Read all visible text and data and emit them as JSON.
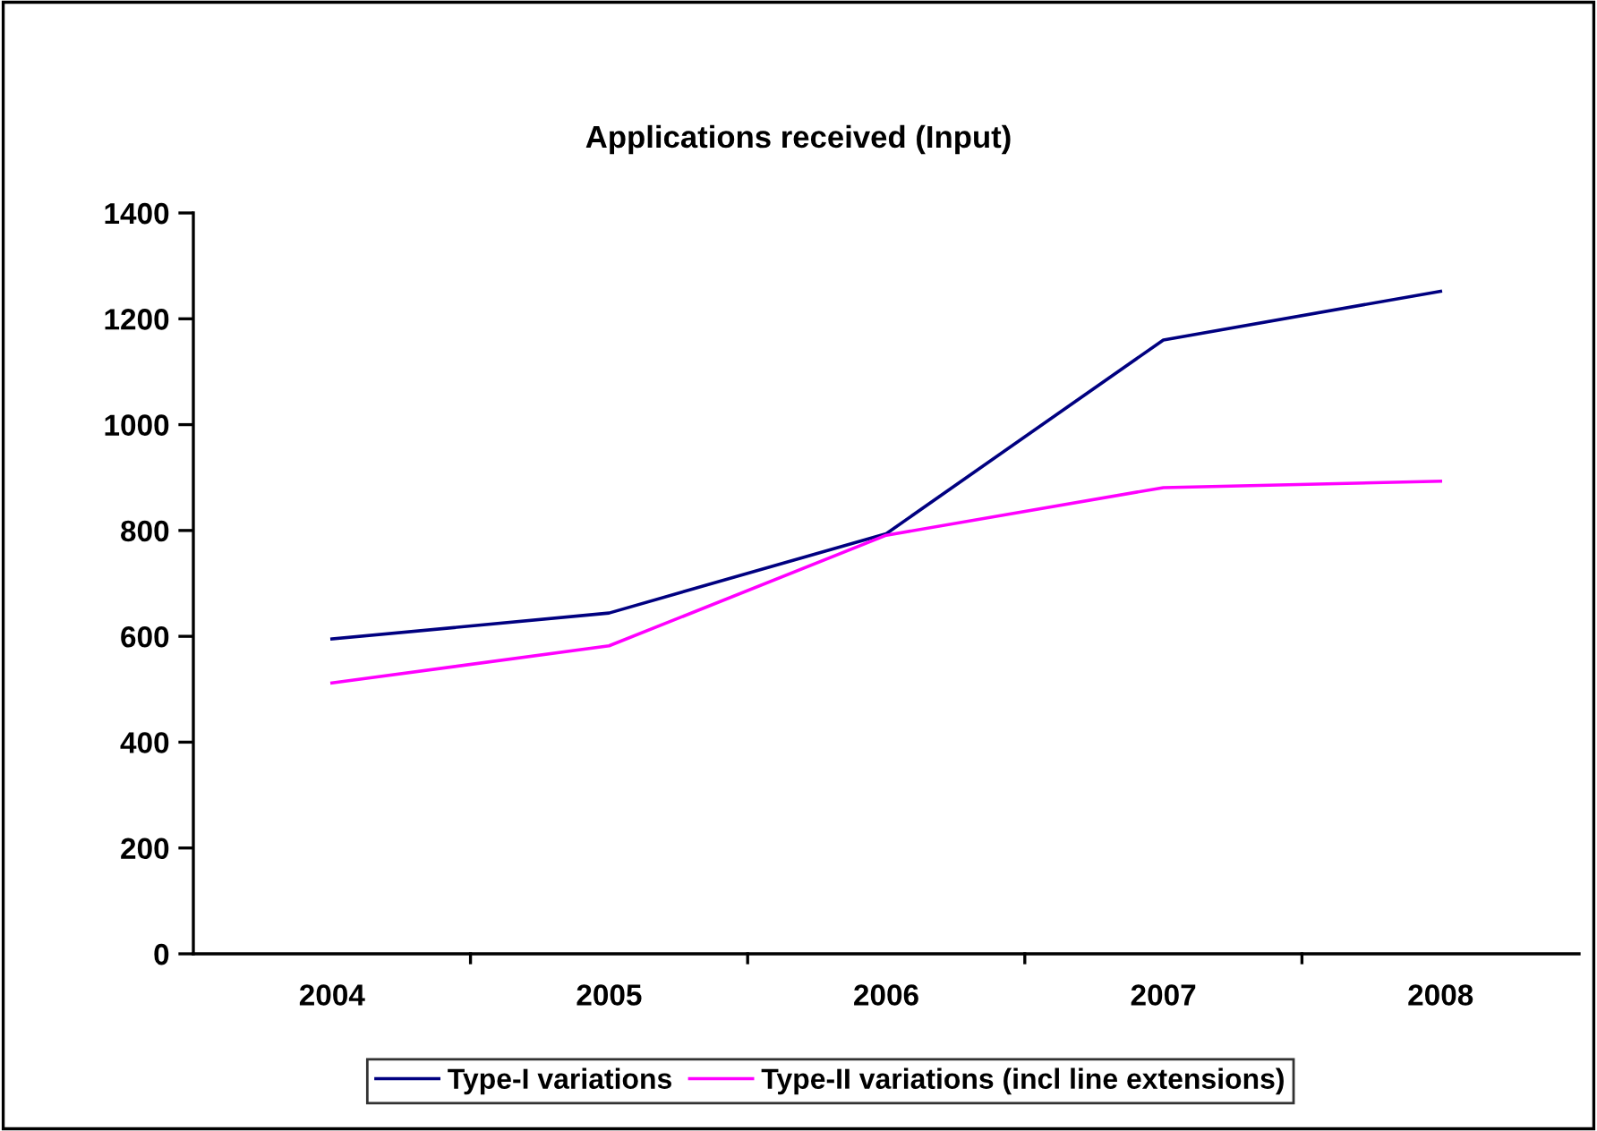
{
  "chart_data": {
    "type": "line",
    "title": "Applications received (Input)",
    "categories": [
      "2004",
      "2005",
      "2006",
      "2007",
      "2008"
    ],
    "series": [
      {
        "name": "Type-I variations",
        "color": "#000080",
        "values": [
          595,
          644,
          794,
          1160,
          1252
        ]
      },
      {
        "name": "Type-II variations (incl line extensions)",
        "color": "#ff00ff",
        "values": [
          512,
          582,
          791,
          881,
          893
        ]
      }
    ],
    "ylim": [
      0,
      1400
    ],
    "yticks": [
      0,
      200,
      400,
      600,
      800,
      1000,
      1200,
      1400
    ],
    "grid": false,
    "legend": "bottom",
    "marker": "none",
    "line_style": "solid"
  }
}
